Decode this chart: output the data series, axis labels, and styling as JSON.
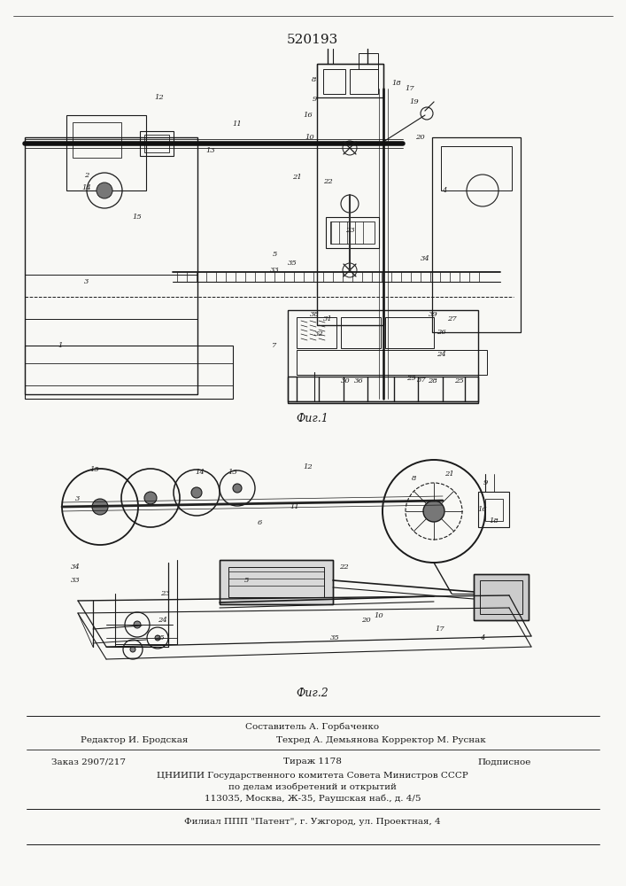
{
  "patent_number": "520193",
  "background_color": "#f8f8f5",
  "line_color": "#1a1a1a",
  "text_color": "#1a1a1a",
  "footer_line1_left": "Редактор И. Бродская",
  "footer_line1_center": "Составитель А. Горбаченко",
  "footer_line2_center": "Техред А. Демьянова Корректор М. Руснак",
  "footer_order": "Заказ 2907/217",
  "footer_tirazh": "Тираж 1178",
  "footer_podpisnoe": "Подписное",
  "footer_org": "ЦНИИПИ Государственного комитета Совета Министров СССР",
  "footer_affairs": "по делам изобретений и открытий",
  "footer_address": "113035, Москва, Ж-35, Раушская наб., д. 4/5",
  "footer_filial": "Филиал ППП \"Патент\", г. Ужгород, ул. Проектная, 4"
}
